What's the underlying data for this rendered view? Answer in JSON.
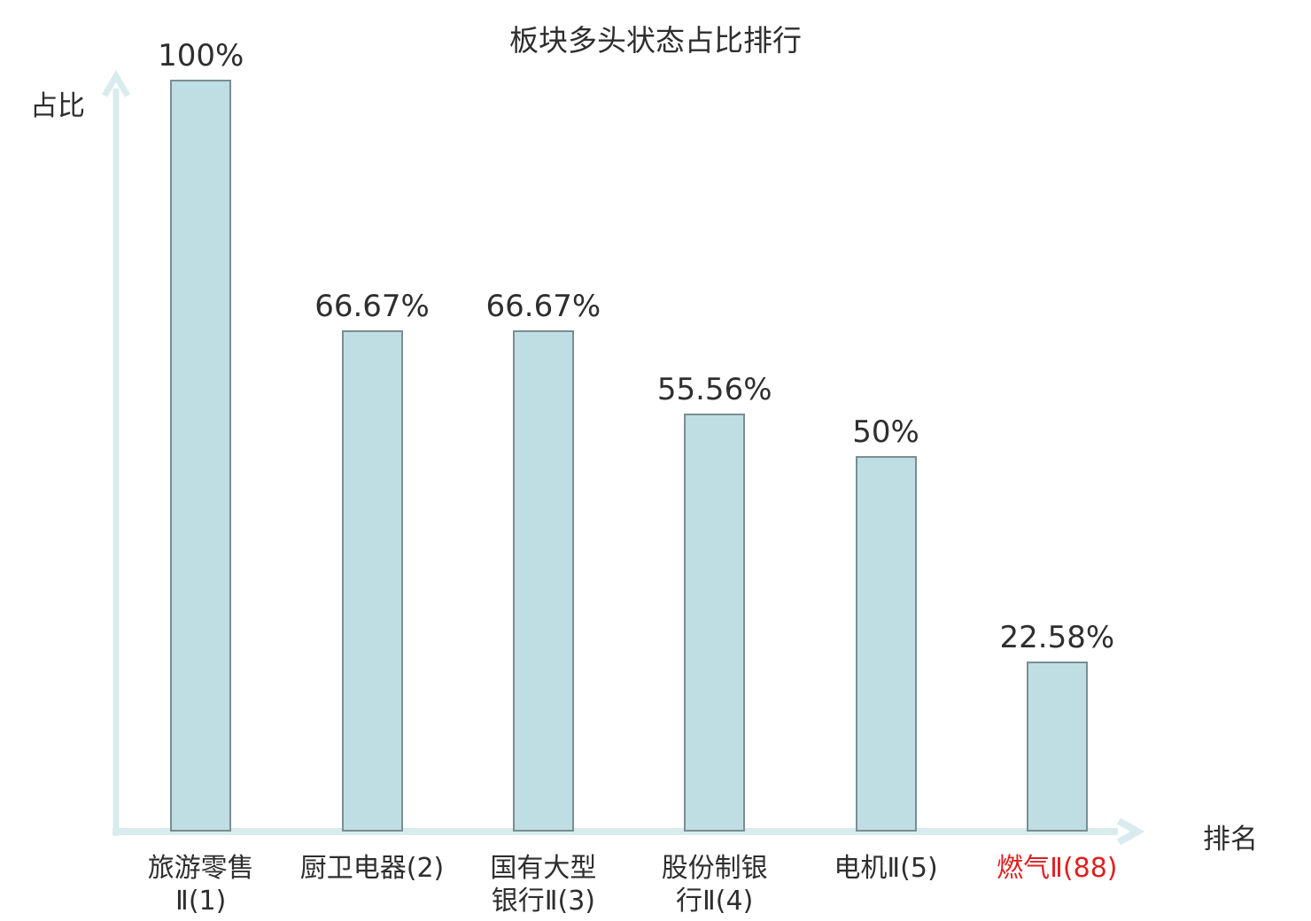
{
  "chart_data": {
    "type": "bar",
    "title": "板块多头状态占比排行",
    "xlabel": "排名",
    "ylabel": "占比",
    "ylim": [
      0,
      100
    ],
    "categories": [
      "旅游零售Ⅱ(1)",
      "厨卫电器(2)",
      "国有大型银行Ⅱ(3)",
      "股份制银行Ⅱ(4)",
      "电机Ⅱ(5)",
      "燃气Ⅱ(88)"
    ],
    "category_lines": [
      [
        "旅游零售",
        "Ⅱ(1)"
      ],
      [
        "厨卫电器(2)"
      ],
      [
        "国有大型",
        "银行Ⅱ(3)"
      ],
      [
        "股份制银",
        "行Ⅱ(4)"
      ],
      [
        "电机Ⅱ(5)"
      ],
      [
        "燃气Ⅱ(88)"
      ]
    ],
    "values": [
      100,
      66.67,
      66.67,
      55.56,
      50,
      22.58
    ],
    "value_labels": [
      "100%",
      "66.67%",
      "66.67%",
      "55.56%",
      "50%",
      "22.58%"
    ],
    "highlight_index": 5,
    "legend": null,
    "grid": false,
    "colors": {
      "bar_fill": "#bfdee3",
      "bar_border": "#7a8e92",
      "axis": "#d8eced",
      "text": "#2e2e2e",
      "highlight_text": "#e02020"
    }
  }
}
